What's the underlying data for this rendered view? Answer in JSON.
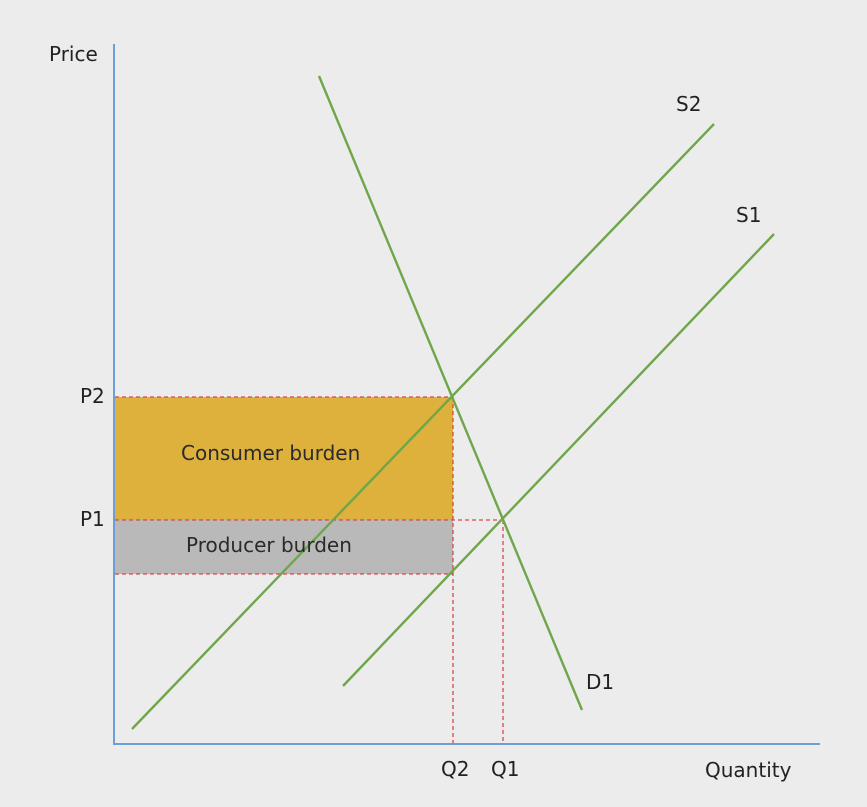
{
  "axes": {
    "y_label": "Price",
    "x_label": "Quantity",
    "axis_color": "#6a9fd8"
  },
  "price_labels": {
    "p2": "P2",
    "p1": "P1"
  },
  "quantity_labels": {
    "q2": "Q2",
    "q1": "Q1"
  },
  "curves": {
    "s2": "S2",
    "s1": "S1",
    "d1": "D1",
    "color": "#6fa64a"
  },
  "regions": {
    "consumer": {
      "label": "Consumer burden",
      "color": "#ddb13c"
    },
    "producer": {
      "label": "Producer burden",
      "color": "#b9b9b9"
    }
  },
  "guide_color": "#d84848"
}
